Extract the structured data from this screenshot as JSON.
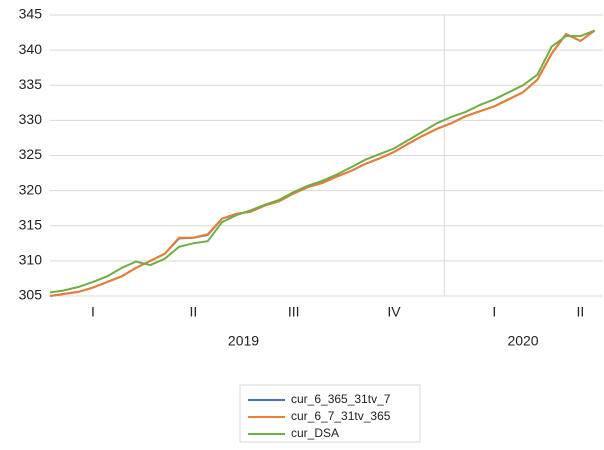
{
  "chart_data": {
    "type": "line",
    "categories": [
      null,
      null,
      null,
      "I",
      null,
      null,
      null,
      null,
      null,
      null,
      "II",
      null,
      null,
      null,
      null,
      null,
      null,
      "III",
      null,
      null,
      null,
      null,
      null,
      null,
      "IV",
      null,
      null,
      null,
      null,
      null,
      null,
      "I",
      null,
      null,
      null,
      null,
      null,
      "II",
      null
    ],
    "years": [
      {
        "label": "2019",
        "count": 28
      },
      {
        "label": "2020",
        "count": 11
      }
    ],
    "series": [
      {
        "name": "cur_6_365_31tv_7",
        "color": "#4472c4",
        "values": [
          305.0,
          305.3,
          305.6,
          306.2,
          307.0,
          307.8,
          309.0,
          310.0,
          311.0,
          313.2,
          313.3,
          313.7,
          316.0,
          316.7,
          317.0,
          317.9,
          318.5,
          319.6,
          320.5,
          321.1,
          322.0,
          322.8,
          323.8,
          324.6,
          325.5,
          326.7,
          327.8,
          328.8,
          329.6,
          330.6,
          331.3,
          332.0,
          333.0,
          334.0,
          335.8,
          339.5,
          342.3,
          341.3,
          342.8
        ]
      },
      {
        "name": "cur_6_7_31tv_365",
        "color": "#ed7d31",
        "values": [
          305.0,
          305.3,
          305.6,
          306.2,
          307.0,
          307.8,
          309.0,
          310.0,
          311.0,
          313.3,
          313.3,
          313.8,
          316.0,
          316.7,
          317.0,
          317.9,
          318.5,
          319.6,
          320.5,
          321.1,
          322.0,
          322.8,
          323.8,
          324.6,
          325.5,
          326.7,
          327.8,
          328.8,
          329.6,
          330.6,
          331.3,
          332.0,
          333.0,
          334.0,
          335.8,
          339.5,
          342.3,
          341.3,
          342.8
        ]
      },
      {
        "name": "cur_DSA",
        "color": "#70ad47",
        "values": [
          305.5,
          305.8,
          306.3,
          307.0,
          307.8,
          309.0,
          309.9,
          309.4,
          310.3,
          312.0,
          312.5,
          312.8,
          315.5,
          316.5,
          317.2,
          318.0,
          318.7,
          319.8,
          320.7,
          321.4,
          322.3,
          323.3,
          324.4,
          325.2,
          326.0,
          327.2,
          328.4,
          329.6,
          330.5,
          331.2,
          332.2,
          333.0,
          334.0,
          335.0,
          336.5,
          340.5,
          342.0,
          342.0,
          342.8
        ]
      }
    ],
    "ylim": [
      305,
      345
    ],
    "yticks": [
      305,
      310,
      315,
      320,
      325,
      330,
      335,
      340,
      345
    ],
    "grid": true
  }
}
